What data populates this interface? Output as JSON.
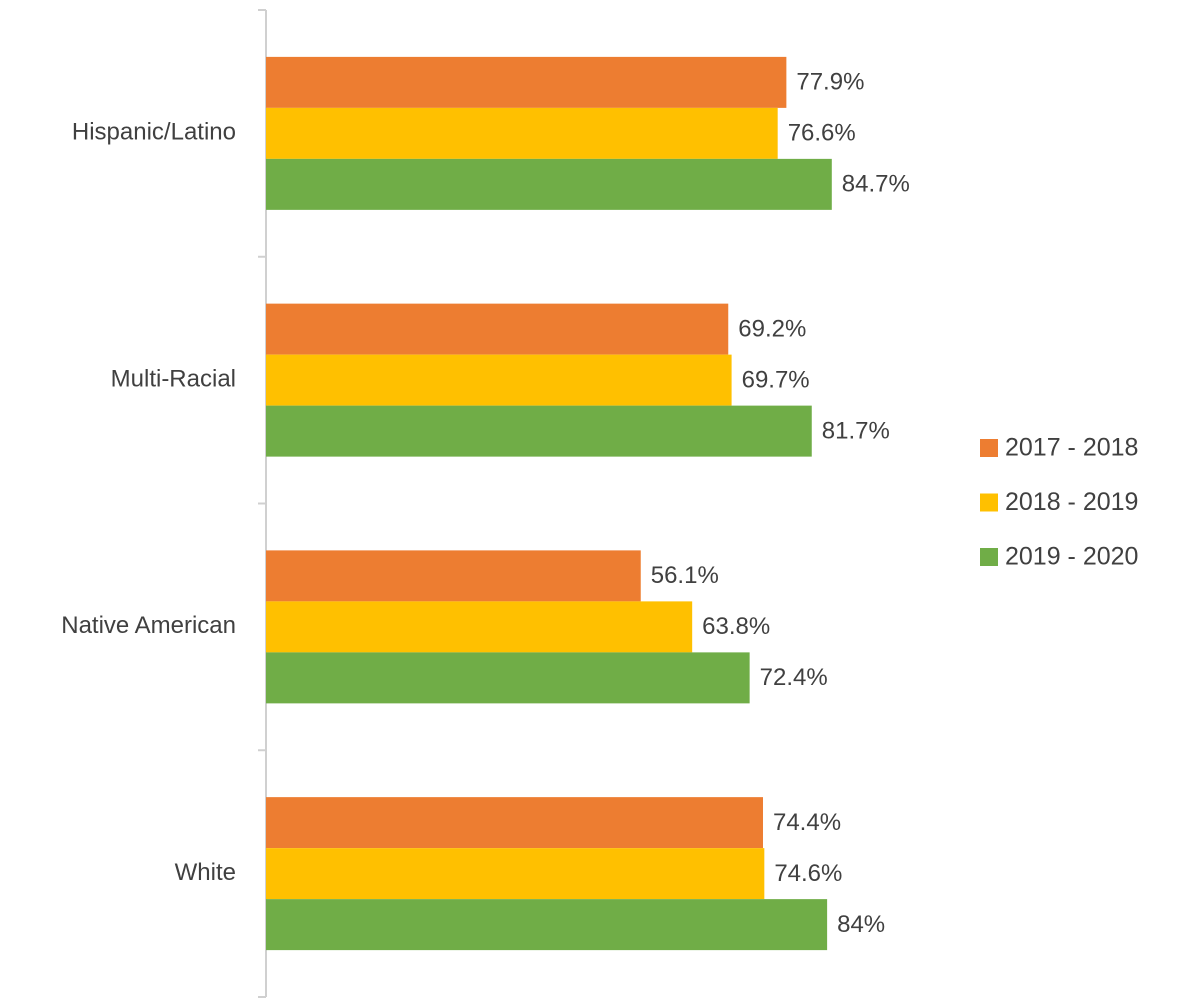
{
  "chart_data": {
    "type": "bar",
    "orientation": "horizontal",
    "categories": [
      "Hispanic/Latino",
      "Multi-Racial",
      "Native American",
      "White"
    ],
    "series": [
      {
        "name": "2017 - 2018",
        "color": "#ED7D31",
        "values": [
          77.9,
          69.2,
          56.1,
          74.4
        ],
        "value_labels": [
          "77.9%",
          "69.2%",
          "56.1%",
          "74.4%"
        ]
      },
      {
        "name": "2018 - 2019",
        "color": "#FFC000",
        "values": [
          76.6,
          69.7,
          63.8,
          74.6
        ],
        "value_labels": [
          "76.6%",
          "69.7%",
          "63.8%",
          "74.6%"
        ]
      },
      {
        "name": "2019 - 2020",
        "color": "#70AD47",
        "values": [
          84.7,
          81.7,
          72.4,
          84
        ],
        "value_labels": [
          "84.7%",
          "81.7%",
          "72.4%",
          "84%"
        ]
      }
    ],
    "xlim": [
      0,
      100
    ],
    "legend": "right"
  }
}
